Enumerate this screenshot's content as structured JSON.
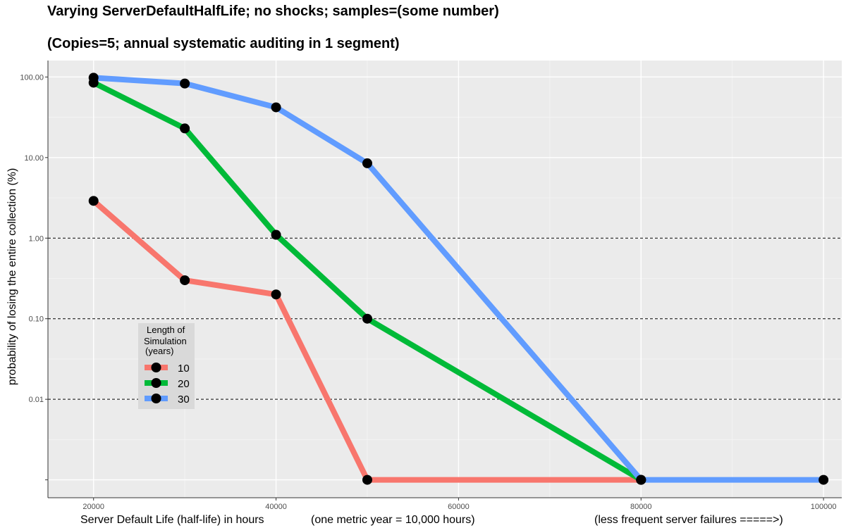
{
  "chart_data": {
    "type": "line",
    "title": "Varying ServerDefaultHalfLife; no shocks; samples=(some number)",
    "subtitle": "(Copies=5; annual systematic auditing in 1 segment)",
    "xlabel": "Server Default Life (half-life) in hours",
    "xlabel_note_1": "(one metric year = 10,000 hours)",
    "xlabel_note_2": "(less frequent server failures =====>)",
    "ylabel": "probability of losing the entire collection (%)",
    "x_ticks": [
      20000,
      40000,
      60000,
      80000,
      100000
    ],
    "x_tick_labels": [
      "20000",
      "40000",
      "60000",
      "80000",
      "100000"
    ],
    "xlim": [
      15000,
      102000
    ],
    "y_scale": "log",
    "y_ticks": [
      0.001,
      0.01,
      0.1,
      1,
      10,
      100
    ],
    "y_tick_labels": [
      "",
      "0.01",
      "0.10",
      "1.00",
      "10.00",
      "100.00"
    ],
    "ylim": [
      0.0006,
      160
    ],
    "dashed_reference_lines": [
      0.01,
      0.1,
      1
    ],
    "grid": true,
    "legend_title_lines": [
      "Length of",
      "Simulation",
      "(years)"
    ],
    "legend_position": "bottom-left inside",
    "series": [
      {
        "name": "10",
        "color": "#F8766D",
        "x": [
          20000,
          30000,
          40000,
          50000,
          80000
        ],
        "y": [
          2.9,
          0.3,
          0.2,
          0.001,
          0.001
        ]
      },
      {
        "name": "20",
        "color": "#00BA38",
        "x": [
          20000,
          30000,
          40000,
          50000,
          80000
        ],
        "y": [
          85,
          23,
          1.1,
          0.1,
          0.001
        ]
      },
      {
        "name": "30",
        "color": "#619CFF",
        "x": [
          20000,
          30000,
          40000,
          50000,
          80000,
          100000
        ],
        "y": [
          98,
          83,
          42,
          8.5,
          0.001,
          0.001
        ]
      }
    ]
  }
}
